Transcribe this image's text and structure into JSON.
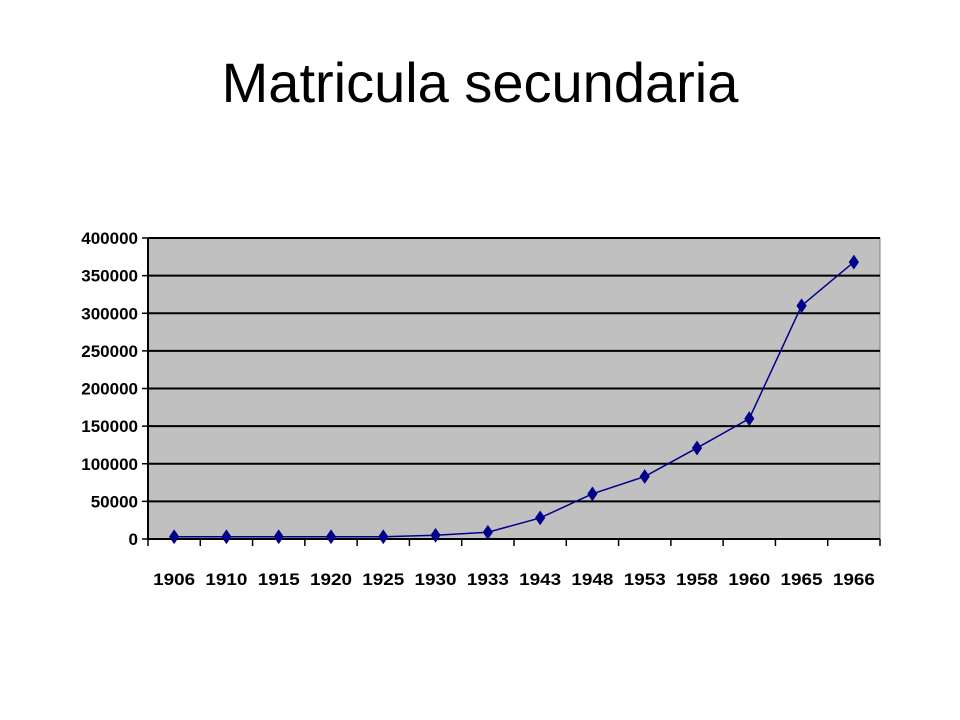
{
  "slide": {
    "title": "Matricula secundaria"
  },
  "chart_data": {
    "type": "line",
    "title": "Matricula secundaria",
    "xlabel": "",
    "ylabel": "",
    "categories": [
      "1906",
      "1910",
      "1915",
      "1920",
      "1925",
      "1930",
      "1933",
      "1943",
      "1948",
      "1953",
      "1958",
      "1960",
      "1965",
      "1966"
    ],
    "series": [
      {
        "values": [
          3000,
          3000,
          3000,
          3000,
          3000,
          5000,
          9000,
          28000,
          60000,
          83000,
          121000,
          160000,
          310000,
          368000
        ],
        "color": "#00008B",
        "marker": "diamond"
      }
    ],
    "ylim": [
      0,
      400000
    ],
    "yticks": [
      "0",
      "50000",
      "100000",
      "150000",
      "200000",
      "250000",
      "300000",
      "350000",
      "400000"
    ],
    "grid": true,
    "plot_background": "#C0C0C0",
    "legend": "none"
  }
}
